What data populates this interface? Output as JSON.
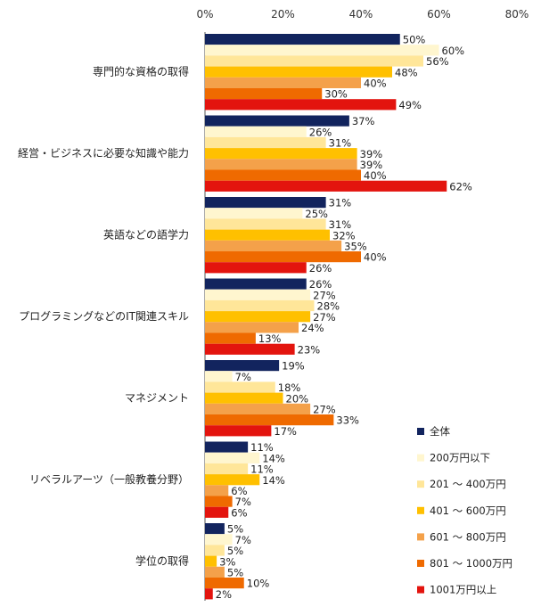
{
  "chart_data": {
    "type": "bar",
    "orientation": "horizontal",
    "title": "",
    "xlabel": "",
    "ylabel": "",
    "xlim": [
      0,
      80
    ],
    "x_ticks": [
      "0%",
      "20%",
      "40%",
      "60%",
      "80%"
    ],
    "grid": false,
    "legend_position": "bottom-right",
    "categories": [
      "専門的な資格の取得",
      "経営・ビジネスに必要な知識や能力",
      "英語などの語学力",
      "プログラミングなどのIT関連スキル",
      "マネジメント",
      "リベラルアーツ（一般教養分野）",
      "学位の取得"
    ],
    "series": [
      {
        "name": "全体",
        "color": "#12245e",
        "values": [
          50,
          37,
          31,
          26,
          19,
          11,
          5
        ]
      },
      {
        "name": "200万円以下",
        "color": "#fff6cf",
        "values": [
          60,
          26,
          25,
          27,
          7,
          14,
          7
        ]
      },
      {
        "name": "201 ～ 400万円",
        "color": "#ffe699",
        "values": [
          56,
          31,
          31,
          28,
          18,
          11,
          5
        ]
      },
      {
        "name": "401 ～ 600万円",
        "color": "#ffc000",
        "values": [
          48,
          39,
          32,
          27,
          20,
          14,
          3
        ]
      },
      {
        "name": "601 ～ 800万円",
        "color": "#f4a14a",
        "values": [
          40,
          39,
          35,
          24,
          27,
          6,
          5
        ]
      },
      {
        "name": "801 ～ 1000万円",
        "color": "#ef6a00",
        "values": [
          30,
          40,
          40,
          13,
          33,
          7,
          10
        ]
      },
      {
        "name": "1001万円以上",
        "color": "#e3140e",
        "values": [
          49,
          62,
          26,
          23,
          17,
          6,
          2
        ]
      }
    ],
    "value_suffix": "%"
  }
}
